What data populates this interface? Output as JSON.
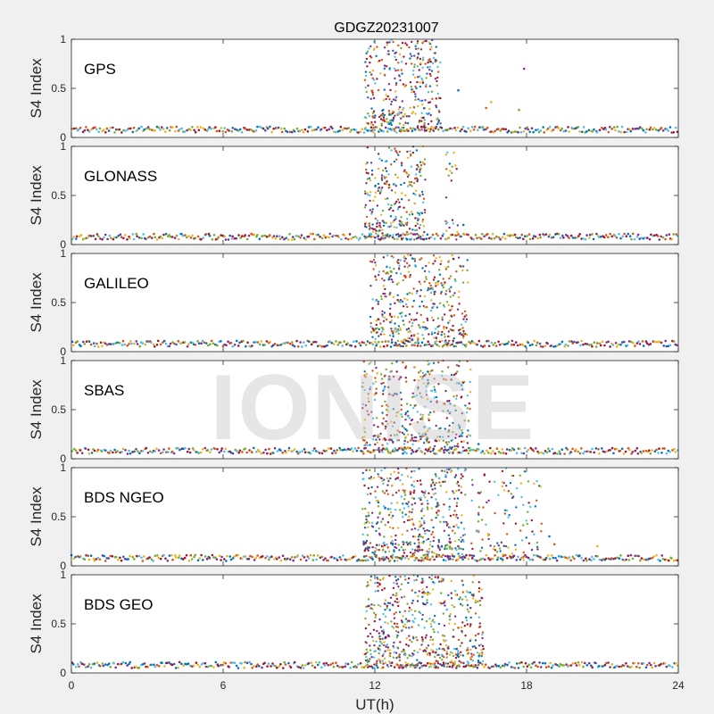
{
  "chart_data": {
    "type": "scatter",
    "title": "GDGZ20231007",
    "xlabel": "UT(h)",
    "xlim": [
      0,
      24
    ],
    "xticks": [
      "0",
      "6",
      "12",
      "18",
      "24"
    ],
    "watermark": "IONISE",
    "series_colors": [
      "#0072bd",
      "#d95319",
      "#edb120",
      "#7e2f8e",
      "#77ac30",
      "#4dbeee",
      "#a2142f"
    ],
    "panels": [
      {
        "label": "GPS",
        "ylabel": "S4 Index",
        "ylim": [
          0,
          1
        ],
        "yticks": [
          "0",
          "0.5",
          "1"
        ],
        "baseline": 0.08,
        "scint_windows": [
          {
            "start": 11.6,
            "end": 14.6,
            "density": 1.0
          }
        ],
        "sporadic_points": [
          {
            "x": 15.3,
            "y": 0.48
          },
          {
            "x": 16.4,
            "y": 0.3
          },
          {
            "x": 16.6,
            "y": 0.36
          },
          {
            "x": 17.9,
            "y": 0.7
          },
          {
            "x": 17.7,
            "y": 0.28
          }
        ]
      },
      {
        "label": "GLONASS",
        "ylabel": "S4 Index",
        "ylim": [
          0,
          1
        ],
        "yticks": [
          "0",
          "0.5",
          "1"
        ],
        "baseline": 0.08,
        "scint_windows": [
          {
            "start": 11.6,
            "end": 14.0,
            "density": 1.0
          },
          {
            "start": 14.8,
            "end": 15.3,
            "density": 0.4
          }
        ],
        "sporadic_points": [
          {
            "x": 15.5,
            "y": 0.2
          }
        ]
      },
      {
        "label": "GALILEO",
        "ylabel": "S4 Index",
        "ylim": [
          0,
          1
        ],
        "yticks": [
          "0",
          "0.5",
          "1"
        ],
        "baseline": 0.08,
        "scint_windows": [
          {
            "start": 11.8,
            "end": 15.7,
            "density": 0.9
          }
        ],
        "sporadic_points": []
      },
      {
        "label": "SBAS",
        "ylabel": "S4 Index",
        "ylim": [
          0,
          1
        ],
        "yticks": [
          "0",
          "0.5",
          "1"
        ],
        "baseline": 0.08,
        "scint_windows": [
          {
            "start": 11.5,
            "end": 15.8,
            "density": 0.8
          }
        ],
        "sporadic_points": [
          {
            "x": 16.1,
            "y": 0.15
          }
        ]
      },
      {
        "label": "BDS NGEO",
        "ylabel": "S4 Index",
        "ylim": [
          0,
          1
        ],
        "yticks": [
          "0",
          "0.5",
          "1"
        ],
        "baseline": 0.08,
        "scint_windows": [
          {
            "start": 11.5,
            "end": 15.6,
            "density": 1.0
          },
          {
            "start": 15.8,
            "end": 18.6,
            "density": 0.35
          }
        ],
        "sporadic_points": [
          {
            "x": 18.9,
            "y": 0.3
          },
          {
            "x": 19.1,
            "y": 0.22
          },
          {
            "x": 20.8,
            "y": 0.2
          }
        ]
      },
      {
        "label": "BDS GEO",
        "ylabel": "S4 Index",
        "ylim": [
          0,
          1
        ],
        "yticks": [
          "0",
          "0.5",
          "1"
        ],
        "baseline": 0.08,
        "scint_windows": [
          {
            "start": 11.6,
            "end": 16.3,
            "density": 1.0
          }
        ],
        "sporadic_points": []
      }
    ]
  }
}
